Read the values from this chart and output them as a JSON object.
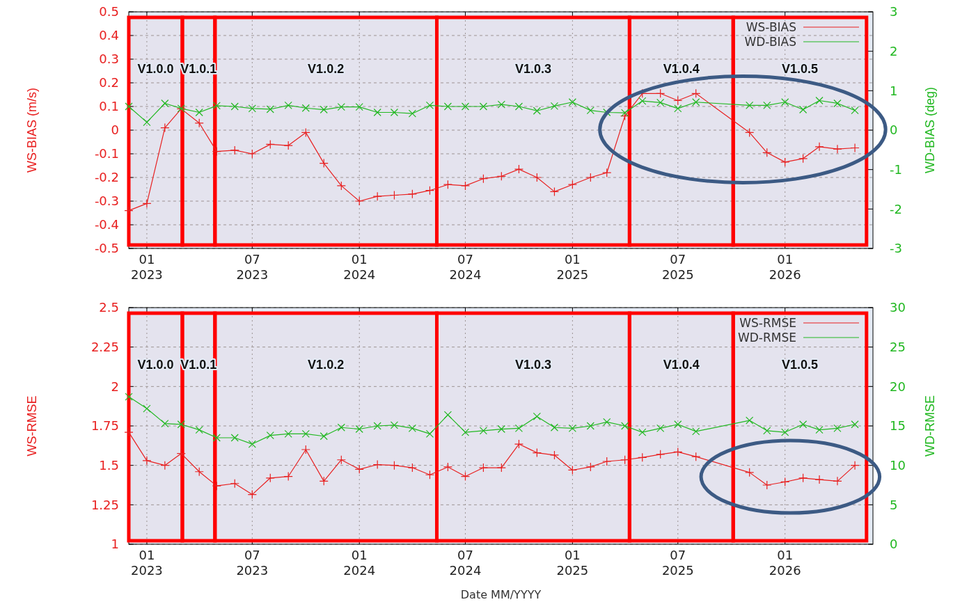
{
  "chart_data": [
    {
      "type": "line",
      "xlim": [
        "2022-12-01",
        "2026-06-01"
      ],
      "ylim": [
        -0.5,
        0.5
      ],
      "y2lim": [
        -3,
        3
      ],
      "xticks": [
        {
          "value": "2023-01",
          "label": "01\n2023"
        },
        {
          "value": "2023-07",
          "label": "07\n2023"
        },
        {
          "value": "2024-01",
          "label": "01\n2024"
        },
        {
          "value": "2024-07",
          "label": "07\n2024"
        },
        {
          "value": "2025-01",
          "label": "01\n2025"
        },
        {
          "value": "2025-07",
          "label": "07\n2025"
        },
        {
          "value": "2026-01",
          "label": "01\n2026"
        }
      ],
      "yticks": [
        -0.5,
        -0.4,
        -0.3,
        -0.2,
        -0.1,
        0,
        0.1,
        0.2,
        0.3,
        0.4,
        0.5
      ],
      "y2ticks": [
        -3,
        -2,
        -1,
        0,
        1,
        2,
        3
      ],
      "ylabel": "WS-BIAS (m/s)",
      "y2label": "WD-BIAS (deg)",
      "grid": true,
      "legend": "top right",
      "x": [
        "2022-12",
        "2023-01",
        "2023-02",
        "2023-03",
        "2023-04",
        "2023-05",
        "2023-06",
        "2023-07",
        "2023-08",
        "2023-09",
        "2023-10",
        "2023-11",
        "2023-12",
        "2024-01",
        "2024-02",
        "2024-03",
        "2024-04",
        "2024-05",
        "2024-06",
        "2024-07",
        "2024-08",
        "2024-09",
        "2024-10",
        "2024-11",
        "2024-12",
        "2025-01",
        "2025-02",
        "2025-03",
        "2025-04",
        "2025-05",
        "2025-06",
        "2025-07",
        "2025-08",
        "2025-11",
        "2025-12",
        "2026-01",
        "2026-02",
        "2026-03",
        "2026-04",
        "2026-05"
      ],
      "series": [
        {
          "name": "WS-BIAS",
          "color": "#e82020",
          "marker": "cross",
          "values": [
            -0.34,
            -0.31,
            0.01,
            0.09,
            0.03,
            -0.09,
            -0.085,
            -0.1,
            -0.06,
            -0.065,
            -0.01,
            -0.14,
            -0.235,
            -0.3,
            -0.28,
            -0.275,
            -0.27,
            -0.255,
            -0.23,
            -0.235,
            -0.205,
            -0.195,
            -0.165,
            -0.2,
            -0.26,
            -0.23,
            -0.2,
            -0.18,
            0.06,
            0.155,
            0.155,
            0.125,
            0.155,
            -0.01,
            -0.095,
            -0.135,
            -0.12,
            -0.07,
            -0.08,
            -0.075
          ]
        },
        {
          "name": "WD-BIAS",
          "color": "#22b822",
          "marker": "x",
          "axis": "y2",
          "values": [
            0.6,
            0.2,
            0.68,
            0.55,
            0.45,
            0.62,
            0.6,
            0.55,
            0.53,
            0.63,
            0.56,
            0.52,
            0.59,
            0.59,
            0.45,
            0.45,
            0.42,
            0.63,
            0.6,
            0.6,
            0.6,
            0.65,
            0.6,
            0.49,
            0.61,
            0.71,
            0.5,
            0.45,
            0.44,
            0.74,
            0.7,
            0.55,
            0.71,
            0.63,
            0.63,
            0.71,
            0.52,
            0.75,
            0.68,
            0.5
          ]
        }
      ],
      "bands": [
        {
          "axis": "x",
          "from": "2022-12-01",
          "to": "2023-03-03",
          "label": "V1.0.0",
          "color": "#ff0000"
        },
        {
          "axis": "x",
          "from": "2023-03-03",
          "to": "2023-04-28",
          "label": "V1.0.1",
          "color": "#ff0000"
        },
        {
          "axis": "x",
          "from": "2023-04-28",
          "to": "2024-05-13",
          "label": "V1.0.2",
          "color": "#ff0000"
        },
        {
          "axis": "x",
          "from": "2024-05-13",
          "to": "2025-04-09",
          "label": "V1.0.3",
          "color": "#ff0000"
        },
        {
          "axis": "x",
          "from": "2025-04-09",
          "to": "2025-10-04",
          "label": "V1.0.4",
          "color": "#ff0000"
        },
        {
          "axis": "x",
          "from": "2025-10-04",
          "to": "2026-05-21",
          "label": "V1.0.5",
          "color": "#ff0000"
        }
      ]
    },
    {
      "type": "line",
      "xlim": [
        "2022-12-01",
        "2026-06-01"
      ],
      "ylim": [
        1,
        2.5
      ],
      "y2lim": [
        0,
        30
      ],
      "xticks": [
        {
          "value": "2023-01",
          "label": "01\n2023"
        },
        {
          "value": "2023-07",
          "label": "07\n2023"
        },
        {
          "value": "2024-01",
          "label": "01\n2024"
        },
        {
          "value": "2024-07",
          "label": "07\n2024"
        },
        {
          "value": "2025-01",
          "label": "01\n2025"
        },
        {
          "value": "2025-07",
          "label": "07\n2025"
        },
        {
          "value": "2026-01",
          "label": "01\n2026"
        }
      ],
      "yticks": [
        1,
        1.25,
        1.5,
        1.75,
        2,
        2.25,
        2.5
      ],
      "y2ticks": [
        0,
        5,
        10,
        15,
        20,
        25,
        30
      ],
      "xlabel": "Date MM/YYYY",
      "ylabel": "WS-RMSE",
      "y2label": "WD-RMSE",
      "grid": true,
      "legend": "top right",
      "x": [
        "2022-12",
        "2023-01",
        "2023-02",
        "2023-03",
        "2023-04",
        "2023-05",
        "2023-06",
        "2023-07",
        "2023-08",
        "2023-09",
        "2023-10",
        "2023-11",
        "2023-12",
        "2024-01",
        "2024-02",
        "2024-03",
        "2024-04",
        "2024-05",
        "2024-06",
        "2024-07",
        "2024-08",
        "2024-09",
        "2024-10",
        "2024-11",
        "2024-12",
        "2025-01",
        "2025-02",
        "2025-03",
        "2025-04",
        "2025-05",
        "2025-06",
        "2025-07",
        "2025-08",
        "2025-11",
        "2025-12",
        "2026-01",
        "2026-02",
        "2026-03",
        "2026-04",
        "2026-05"
      ],
      "series": [
        {
          "name": "WS-RMSE",
          "color": "#e82020",
          "marker": "cross",
          "values": [
            1.71,
            1.53,
            1.5,
            1.575,
            1.46,
            1.37,
            1.385,
            1.315,
            1.42,
            1.43,
            1.6,
            1.4,
            1.535,
            1.475,
            1.505,
            1.5,
            1.485,
            1.44,
            1.49,
            1.43,
            1.485,
            1.485,
            1.635,
            1.58,
            1.565,
            1.47,
            1.49,
            1.525,
            1.535,
            1.55,
            1.57,
            1.585,
            1.555,
            1.455,
            1.375,
            1.395,
            1.42,
            1.41,
            1.4,
            1.5
          ]
        },
        {
          "name": "WD-RMSE",
          "color": "#22b822",
          "marker": "x",
          "axis": "y2",
          "values": [
            18.7,
            17.2,
            15.3,
            15.2,
            14.5,
            13.5,
            13.5,
            12.7,
            13.8,
            14.0,
            14.0,
            13.7,
            14.8,
            14.6,
            15.0,
            15.1,
            14.7,
            14.0,
            16.4,
            14.2,
            14.4,
            14.6,
            14.7,
            16.2,
            14.8,
            14.7,
            15.0,
            15.5,
            15.0,
            14.2,
            14.7,
            15.2,
            14.3,
            15.7,
            14.4,
            14.2,
            15.2,
            14.5,
            14.7,
            15.2
          ]
        }
      ],
      "bands": [
        {
          "axis": "x",
          "from": "2022-12-01",
          "to": "2023-03-03",
          "label": "V1.0.0",
          "color": "#ff0000"
        },
        {
          "axis": "x",
          "from": "2023-03-03",
          "to": "2023-04-28",
          "label": "V1.0.1",
          "color": "#ff0000"
        },
        {
          "axis": "x",
          "from": "2023-04-28",
          "to": "2024-05-13",
          "label": "V1.0.2",
          "color": "#ff0000"
        },
        {
          "axis": "x",
          "from": "2024-05-13",
          "to": "2025-04-09",
          "label": "V1.0.3",
          "color": "#ff0000"
        },
        {
          "axis": "x",
          "from": "2025-04-09",
          "to": "2025-10-04",
          "label": "V1.0.4",
          "color": "#ff0000"
        },
        {
          "axis": "x",
          "from": "2025-10-04",
          "to": "2026-05-21",
          "label": "V1.0.5",
          "color": "#ff0000"
        }
      ]
    }
  ]
}
